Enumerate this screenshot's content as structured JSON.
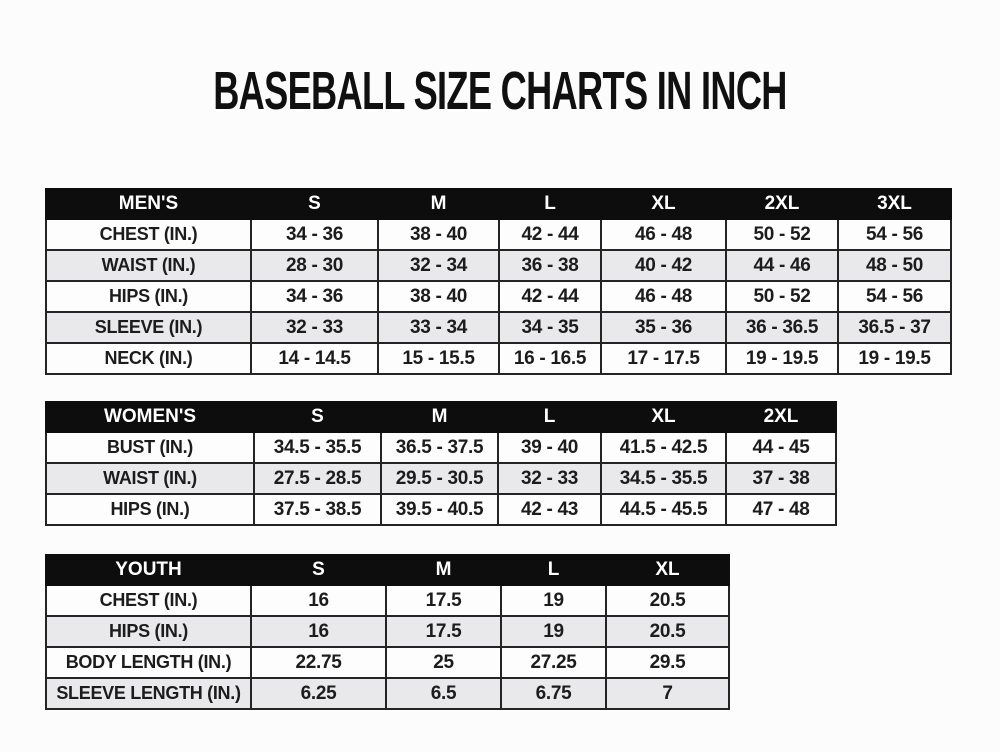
{
  "title": "BASEBALL SIZE CHARTS IN INCH",
  "tables": [
    {
      "name": "mens",
      "label": "MEN'S",
      "sizes": [
        "S",
        "M",
        "L",
        "XL",
        "2XL",
        "3XL"
      ],
      "rows": [
        {
          "label": "CHEST (IN.)",
          "values": [
            "34 - 36",
            "38 - 40",
            "42 - 44",
            "46 - 48",
            "50 - 52",
            "54 - 56"
          ]
        },
        {
          "label": "WAIST (IN.)",
          "values": [
            "28 - 30",
            "32 - 34",
            "36 - 38",
            "40 - 42",
            "44 - 46",
            "48 - 50"
          ]
        },
        {
          "label": "HIPS (IN.)",
          "values": [
            "34 - 36",
            "38 - 40",
            "42 - 44",
            "46 - 48",
            "50 - 52",
            "54 - 56"
          ]
        },
        {
          "label": "SLEEVE (IN.)",
          "values": [
            "32 - 33",
            "33 - 34",
            "34 - 35",
            "35 - 36",
            "36 - 36.5",
            "36.5 - 37"
          ]
        },
        {
          "label": "NECK (IN.)",
          "values": [
            "14 - 14.5",
            "15 - 15.5",
            "16 - 16.5",
            "17 - 17.5",
            "19 - 19.5",
            "19 - 19.5"
          ]
        }
      ]
    },
    {
      "name": "womens",
      "label": "WOMEN'S",
      "sizes": [
        "S",
        "M",
        "L",
        "XL",
        "2XL"
      ],
      "rows": [
        {
          "label": "BUST (IN.)",
          "values": [
            "34.5 - 35.5",
            "36.5 - 37.5",
            "39 - 40",
            "41.5 - 42.5",
            "44 - 45"
          ]
        },
        {
          "label": "WAIST (IN.)",
          "values": [
            "27.5 - 28.5",
            "29.5 - 30.5",
            "32 - 33",
            "34.5 - 35.5",
            "37 - 38"
          ]
        },
        {
          "label": "HIPS (IN.)",
          "values": [
            "37.5 - 38.5",
            "39.5 - 40.5",
            "42 - 43",
            "44.5 - 45.5",
            "47 - 48"
          ]
        }
      ]
    },
    {
      "name": "youth",
      "label": "YOUTH",
      "sizes": [
        "S",
        "M",
        "L",
        "XL"
      ],
      "rows": [
        {
          "label": "CHEST (IN.)",
          "values": [
            "16",
            "17.5",
            "19",
            "20.5"
          ]
        },
        {
          "label": "HIPS (IN.)",
          "values": [
            "16",
            "17.5",
            "19",
            "20.5"
          ]
        },
        {
          "label": "BODY LENGTH (IN.)",
          "values": [
            "22.75",
            "25",
            "27.25",
            "29.5"
          ]
        },
        {
          "label": "SLEEVE LENGTH (IN.)",
          "values": [
            "6.25",
            "6.5",
            "6.75",
            "7"
          ]
        }
      ]
    }
  ],
  "colors": {
    "page_bg": "#fcfcfc",
    "header_bg": "#0d0d0d",
    "header_text": "#ffffff",
    "row_alt_bg": "#e9e9eb",
    "border": "#242424",
    "text": "#1c1c1c"
  }
}
